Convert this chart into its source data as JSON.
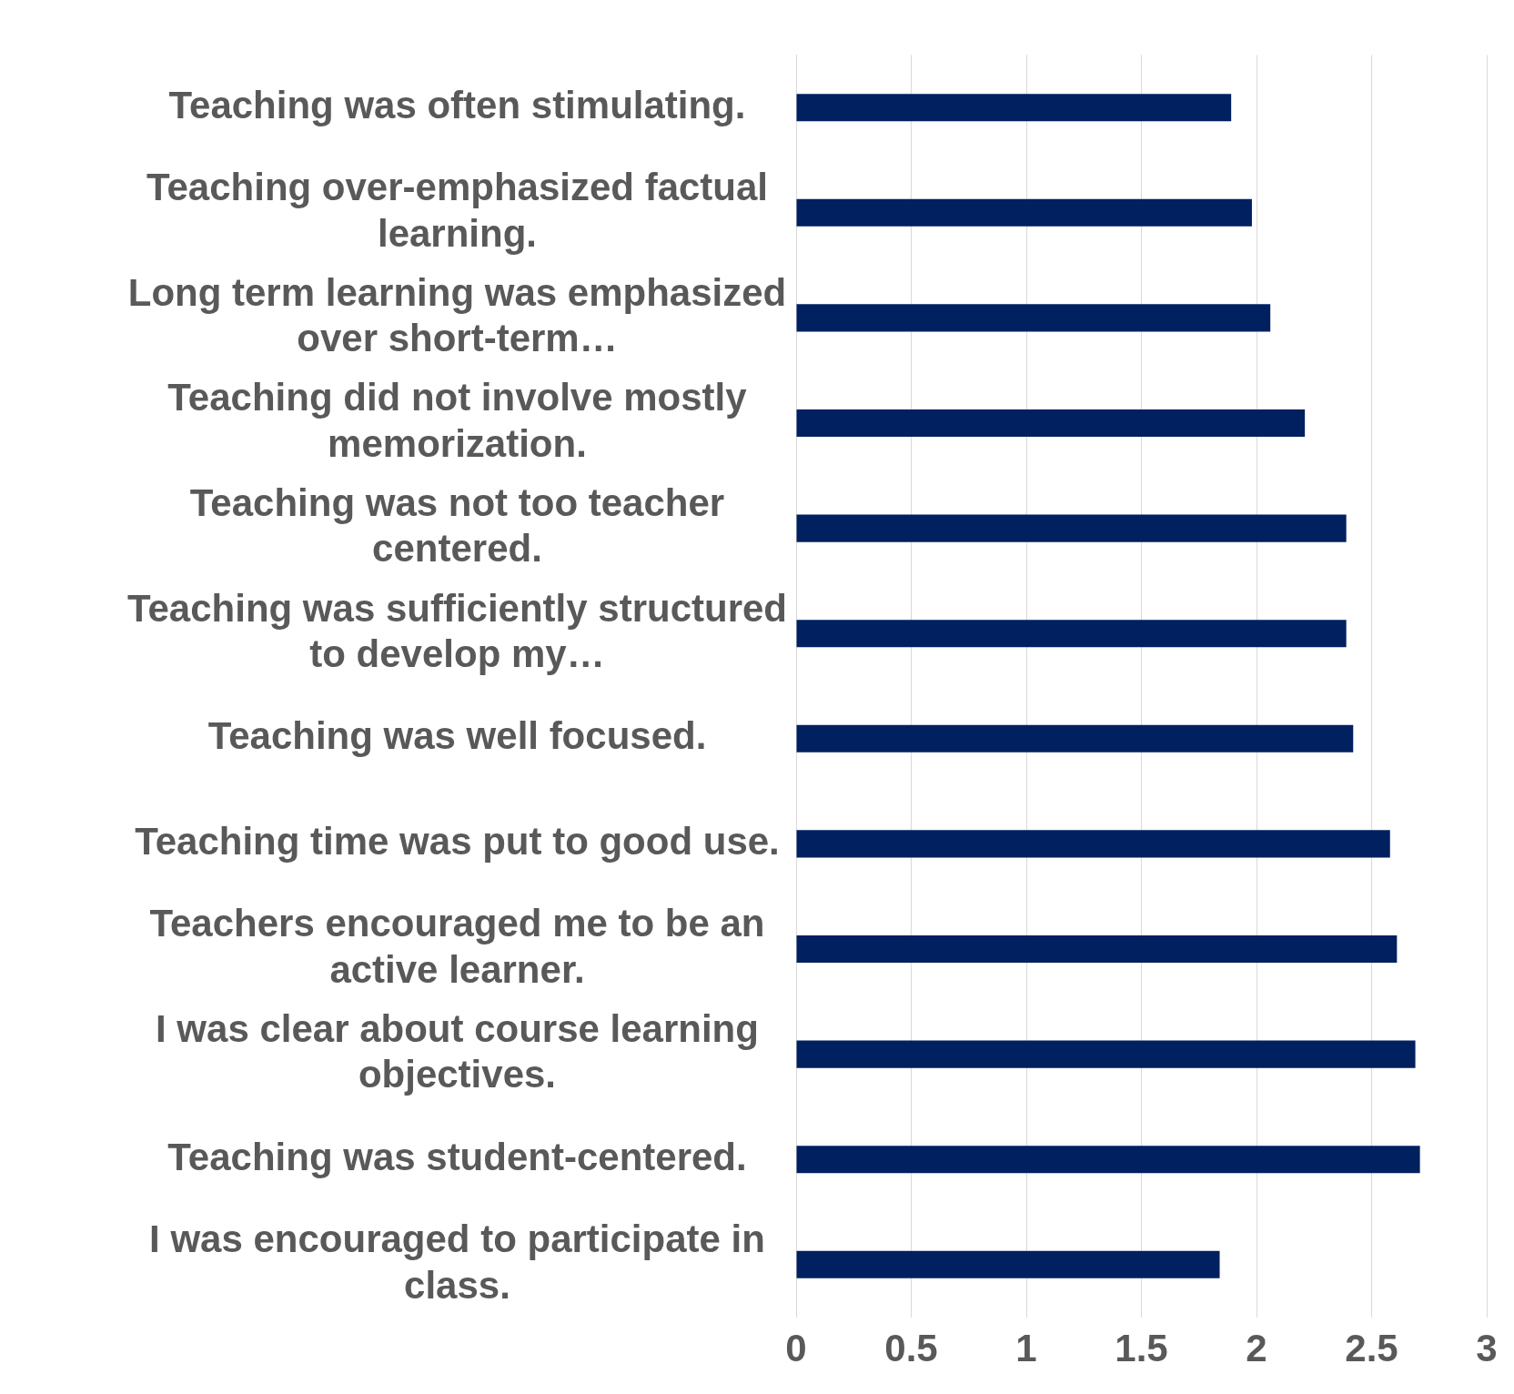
{
  "chart_data": {
    "type": "bar",
    "orientation": "horizontal",
    "categories": [
      "Teaching was often stimulating.",
      "Teaching over-emphasized factual learning.",
      "Long term learning was emphasized over short-term…",
      "Teaching did not involve mostly memorization.",
      "Teaching was not too teacher centered.",
      "Teaching was sufficiently structured to develop my…",
      "Teaching was well focused.",
      "Teaching time was put to good use.",
      "Teachers encouraged me to be an active learner.",
      "I was clear about course learning objectives.",
      "Teaching was student-centered.",
      "I was encouraged to participate in class."
    ],
    "values": [
      1.89,
      1.98,
      2.06,
      2.21,
      2.39,
      2.39,
      2.42,
      2.58,
      2.61,
      2.69,
      2.71,
      1.84
    ],
    "color": "#002060",
    "xlim": [
      0,
      3
    ],
    "xticks": [
      0,
      0.5,
      1,
      1.5,
      2,
      2.5,
      3
    ],
    "grid": "x"
  }
}
